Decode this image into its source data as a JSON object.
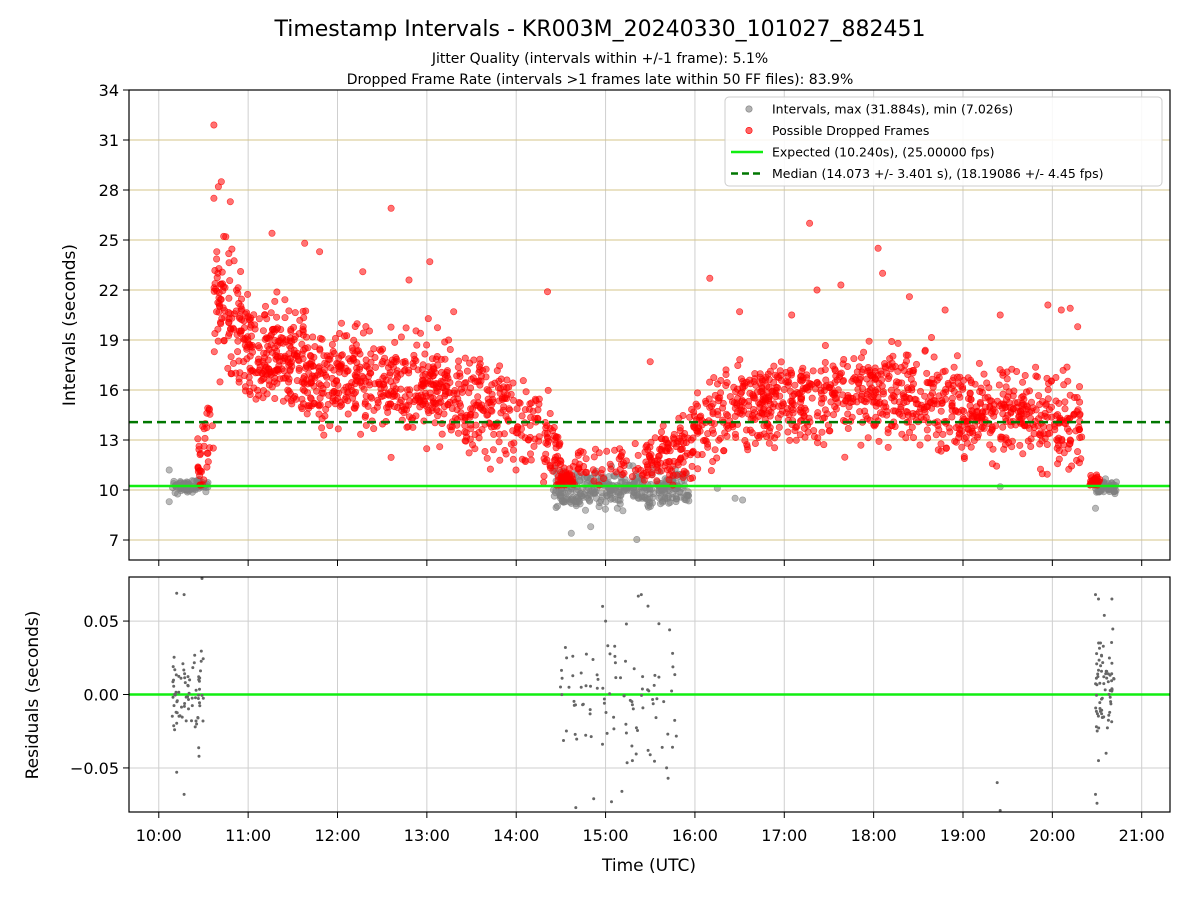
{
  "chart_data": {
    "title": "Timestamp Intervals - KR003M_20240330_101027_882451",
    "subtitle_1": "Jitter Quality (intervals within +/-1 frame): 5.1%",
    "subtitle_2": "Dropped Frame Rate (intervals >1 frames late within 50 FF files): 83.9%",
    "panels": [
      {
        "type": "scatter",
        "ylabel": "Intervals (seconds)",
        "ylim": [
          5.8,
          34
        ],
        "yticks": [
          {
            "label": "7",
            "v": 7
          },
          {
            "label": "10",
            "v": 10
          },
          {
            "label": "13",
            "v": 13
          },
          {
            "label": "16",
            "v": 16
          },
          {
            "label": "19",
            "v": 19
          },
          {
            "label": "22",
            "v": 22
          },
          {
            "label": "25",
            "v": 25
          },
          {
            "label": "28",
            "v": 28
          },
          {
            "label": "31",
            "v": 31
          },
          {
            "label": "34",
            "v": 34
          }
        ],
        "horizontal_grid_color": "#d4c48a",
        "vertical_grid": true,
        "legend_position": "top-right",
        "series": [
          {
            "name": "Intervals, max (31.884s), min (7.026s)",
            "kind": "scatter",
            "color": "#808080",
            "clusters": [
              {
                "x_start": "10:09",
                "x_end": "10:33",
                "y_center": 10.2,
                "spread": 0.35,
                "count": 70
              },
              {
                "x_start": "14:25",
                "x_end": "15:56",
                "y_center": 10.1,
                "spread": 0.9,
                "count": 340
              },
              {
                "x_start": "20:29",
                "x_end": "20:43",
                "y_center": 10.2,
                "spread": 0.35,
                "count": 60
              }
            ],
            "outliers": [
              {
                "x": "10:07",
                "y": 11.2
              },
              {
                "x": "10:07",
                "y": 9.3
              },
              {
                "x": "14:37",
                "y": 7.4
              },
              {
                "x": "14:50",
                "y": 7.8
              },
              {
                "x": "15:21",
                "y": 7.03
              },
              {
                "x": "16:15",
                "y": 10.1
              },
              {
                "x": "16:27",
                "y": 9.5
              },
              {
                "x": "16:32",
                "y": 9.4
              },
              {
                "x": "19:25",
                "y": 10.2
              },
              {
                "x": "20:29",
                "y": 8.9
              }
            ]
          },
          {
            "name": "Possible Dropped Frames",
            "kind": "scatter",
            "color": "#ff0000",
            "segments": [
              {
                "x_start": "10:26",
                "x_end": "10:37",
                "y_start": 10.8,
                "y_end": 15.0,
                "spread": 1.6,
                "count": 35
              },
              {
                "x_start": "10:37",
                "x_end": "11:00",
                "y_start": 22.0,
                "y_end": 18.5,
                "spread": 2.6,
                "count": 110
              },
              {
                "x_start": "11:00",
                "x_end": "12:00",
                "y_start": 18.0,
                "y_end": 17.0,
                "spread": 1.9,
                "count": 300
              },
              {
                "x_start": "12:00",
                "x_end": "13:00",
                "y_start": 17.0,
                "y_end": 16.0,
                "spread": 1.9,
                "count": 250
              },
              {
                "x_start": "13:00",
                "x_end": "14:00",
                "y_start": 16.0,
                "y_end": 14.5,
                "spread": 1.8,
                "count": 240
              },
              {
                "x_start": "14:00",
                "x_end": "14:30",
                "y_start": 14.5,
                "y_end": 12.0,
                "spread": 1.6,
                "count": 90
              },
              {
                "x_start": "14:28",
                "x_end": "14:38",
                "y_start": 10.6,
                "y_end": 10.6,
                "spread": 0.35,
                "count": 45
              },
              {
                "x_start": "14:38",
                "x_end": "15:55",
                "y_start": 11.6,
                "y_end": 11.4,
                "spread": 0.8,
                "count": 70
              },
              {
                "x_start": "15:25",
                "x_end": "15:55",
                "y_start": 11.5,
                "y_end": 12.5,
                "spread": 1.0,
                "count": 80
              },
              {
                "x_start": "15:55",
                "x_end": "16:30",
                "y_start": 13.0,
                "y_end": 15.0,
                "spread": 1.6,
                "count": 110
              },
              {
                "x_start": "16:30",
                "x_end": "18:00",
                "y_start": 15.0,
                "y_end": 16.0,
                "spread": 1.7,
                "count": 350
              },
              {
                "x_start": "18:00",
                "x_end": "19:00",
                "y_start": 16.0,
                "y_end": 14.8,
                "spread": 1.8,
                "count": 230
              },
              {
                "x_start": "19:00",
                "x_end": "20:20",
                "y_start": 14.8,
                "y_end": 14.0,
                "spread": 1.8,
                "count": 300
              },
              {
                "x_start": "20:25",
                "x_end": "20:32",
                "y_start": 10.5,
                "y_end": 10.5,
                "spread": 0.3,
                "count": 25
              }
            ],
            "outliers": [
              {
                "x": "10:37",
                "y": 31.9
              },
              {
                "x": "10:40",
                "y": 28.2
              },
              {
                "x": "10:42",
                "y": 28.5
              },
              {
                "x": "10:37",
                "y": 27.5
              },
              {
                "x": "10:48",
                "y": 27.3
              },
              {
                "x": "10:45",
                "y": 25.2
              },
              {
                "x": "11:16",
                "y": 25.4
              },
              {
                "x": "11:38",
                "y": 24.8
              },
              {
                "x": "11:48",
                "y": 24.3
              },
              {
                "x": "12:17",
                "y": 23.1
              },
              {
                "x": "12:36",
                "y": 26.9
              },
              {
                "x": "12:48",
                "y": 22.6
              },
              {
                "x": "13:02",
                "y": 23.7
              },
              {
                "x": "13:18",
                "y": 20.7
              },
              {
                "x": "14:21",
                "y": 21.9
              },
              {
                "x": "15:30",
                "y": 17.7
              },
              {
                "x": "16:10",
                "y": 22.7
              },
              {
                "x": "16:30",
                "y": 20.7
              },
              {
                "x": "17:05",
                "y": 20.5
              },
              {
                "x": "17:17",
                "y": 26.0
              },
              {
                "x": "17:22",
                "y": 22.0
              },
              {
                "x": "17:38",
                "y": 22.3
              },
              {
                "x": "18:03",
                "y": 24.5
              },
              {
                "x": "18:06",
                "y": 23.0
              },
              {
                "x": "18:24",
                "y": 21.6
              },
              {
                "x": "18:48",
                "y": 20.8
              },
              {
                "x": "19:25",
                "y": 20.5
              },
              {
                "x": "19:57",
                "y": 21.1
              },
              {
                "x": "20:06",
                "y": 20.8
              },
              {
                "x": "20:12",
                "y": 20.9
              },
              {
                "x": "20:17",
                "y": 19.8
              }
            ]
          },
          {
            "name": "Expected (10.240s), (25.00000 fps)",
            "kind": "hline",
            "y": 10.24,
            "color": "#11ee11",
            "style": "solid"
          },
          {
            "name": "Median (14.073 +/- 3.401 s), (18.19086 +/- 4.45 fps)",
            "kind": "hline",
            "y": 14.073,
            "color": "#007700",
            "style": "dashed"
          }
        ]
      },
      {
        "type": "scatter",
        "ylabel": "Residuals (seconds)",
        "ylim": [
          -0.08,
          0.08
        ],
        "yticks": [
          {
            "label": "−0.05",
            "v": -0.05
          },
          {
            "label": "0.00",
            "v": 0
          },
          {
            "label": "0.05",
            "v": 0.05
          }
        ],
        "grid": true,
        "reference_line": {
          "y": 0,
          "color": "#11ee11"
        },
        "point_color": "#666666",
        "clusters": [
          {
            "x_start": "10:09",
            "x_end": "10:30",
            "spread": 0.022,
            "count": 75
          },
          {
            "x_start": "14:28",
            "x_end": "15:48",
            "spread": 0.038,
            "count": 85
          },
          {
            "x_start": "20:29",
            "x_end": "20:42",
            "spread": 0.03,
            "count": 70
          }
        ],
        "points": [
          {
            "x": "10:12",
            "y": 0.069
          },
          {
            "x": "10:17",
            "y": 0.068
          },
          {
            "x": "10:29",
            "y": 0.079
          },
          {
            "x": "10:12",
            "y": -0.053
          },
          {
            "x": "10:17",
            "y": -0.068
          },
          {
            "x": "10:27",
            "y": -0.042
          },
          {
            "x": "14:33",
            "y": 0.032
          },
          {
            "x": "14:38",
            "y": 0.026
          },
          {
            "x": "14:58",
            "y": 0.06
          },
          {
            "x": "15:00",
            "y": 0.05
          },
          {
            "x": "15:14",
            "y": 0.048
          },
          {
            "x": "15:22",
            "y": 0.067
          },
          {
            "x": "15:24",
            "y": 0.068
          },
          {
            "x": "15:43",
            "y": 0.044
          },
          {
            "x": "15:45",
            "y": 0.028
          },
          {
            "x": "14:40",
            "y": -0.077
          },
          {
            "x": "14:52",
            "y": -0.071
          },
          {
            "x": "15:04",
            "y": -0.073
          },
          {
            "x": "15:11",
            "y": -0.066
          },
          {
            "x": "15:18",
            "y": -0.045
          },
          {
            "x": "15:38",
            "y": -0.036
          },
          {
            "x": "15:41",
            "y": -0.05
          },
          {
            "x": "15:42",
            "y": -0.057
          },
          {
            "x": "15:30",
            "y": -0.041
          },
          {
            "x": "19:23",
            "y": -0.06
          },
          {
            "x": "19:25",
            "y": -0.079
          },
          {
            "x": "20:29",
            "y": 0.068
          },
          {
            "x": "20:31",
            "y": 0.065
          },
          {
            "x": "20:40",
            "y": 0.065
          },
          {
            "x": "20:29",
            "y": -0.068
          },
          {
            "x": "20:30",
            "y": -0.074
          },
          {
            "x": "20:31",
            "y": -0.045
          }
        ]
      }
    ],
    "xlabel": "Time (UTC)",
    "xlim": [
      "09:40",
      "21:19"
    ],
    "xticks": [
      "10:00",
      "11:00",
      "12:00",
      "13:00",
      "14:00",
      "15:00",
      "16:00",
      "17:00",
      "18:00",
      "19:00",
      "20:00",
      "21:00"
    ]
  }
}
